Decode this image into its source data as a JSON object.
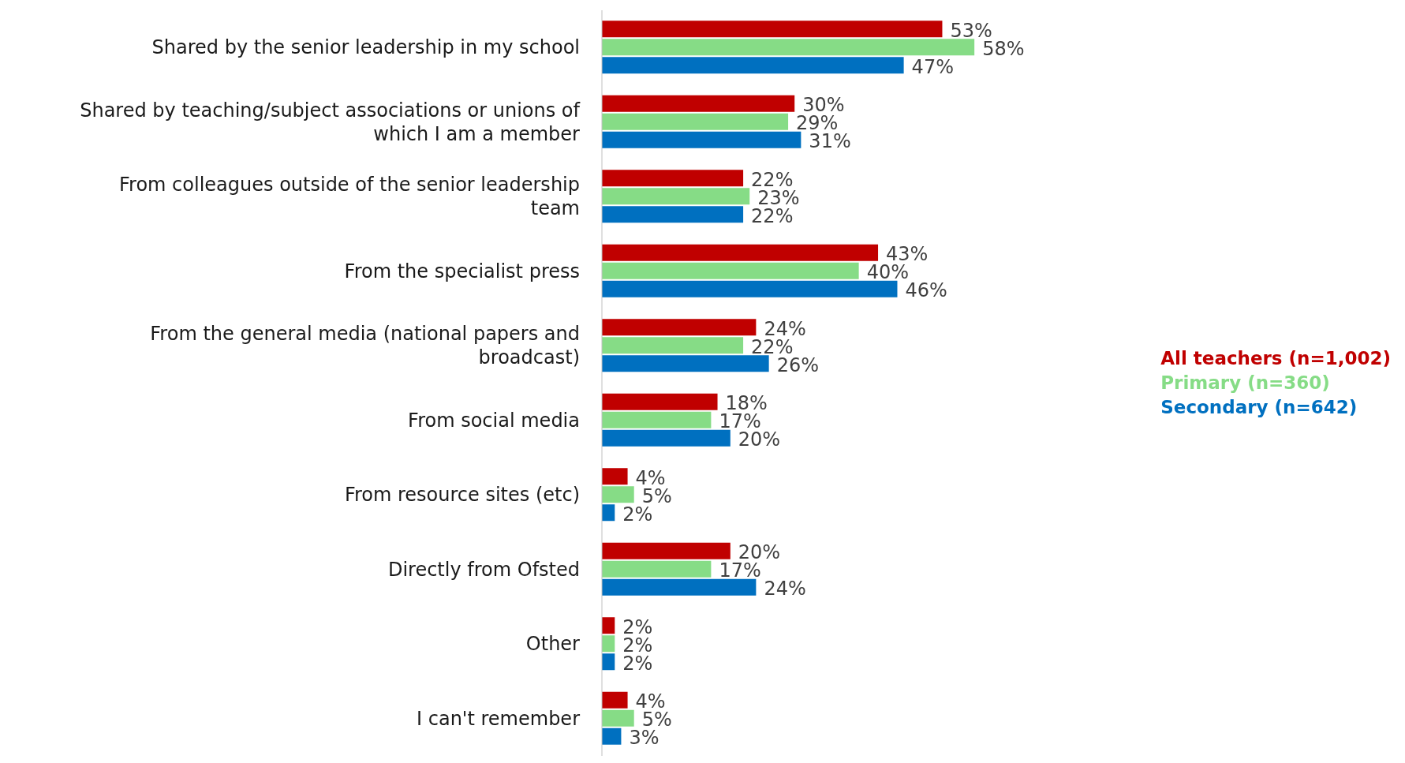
{
  "chart_data": {
    "type": "bar",
    "orientation": "horizontal",
    "legend": "right",
    "categories": [
      "Shared by the senior leadership in my school",
      "Shared by teaching/subject associations or unions of which I am a member",
      "From colleagues outside of the senior leadership team",
      "From the specialist press",
      "From the general media (national papers and broadcast)",
      "From social media",
      "From resource sites (etc)",
      "Directly from Ofsted",
      "Other",
      "I can't remember"
    ],
    "series": [
      {
        "name": "All teachers (n=1,002)",
        "color": "#c00000",
        "values": [
          53,
          30,
          22,
          43,
          24,
          18,
          4,
          20,
          2,
          4
        ],
        "value_labels": [
          "53%",
          "30%",
          "22%",
          "43%",
          "24%",
          "18%",
          "4%",
          "20%",
          "2%",
          "4%"
        ]
      },
      {
        "name": "Primary (n=360)",
        "color": "#86dc86",
        "values": [
          58,
          29,
          23,
          40,
          22,
          17,
          5,
          17,
          2,
          5
        ],
        "value_labels": [
          "58%",
          "29%",
          "23%",
          "40%",
          "22%",
          "17%",
          "5%",
          "17%",
          "2%",
          "5%"
        ]
      },
      {
        "name": "Secondary (n=642)",
        "color": "#0070c0",
        "values": [
          47,
          31,
          22,
          46,
          26,
          20,
          2,
          24,
          2,
          3
        ],
        "value_labels": [
          "47%",
          "31%",
          "22%",
          "46%",
          "26%",
          "20%",
          "2%",
          "24%",
          "2%",
          "3%"
        ]
      }
    ]
  }
}
